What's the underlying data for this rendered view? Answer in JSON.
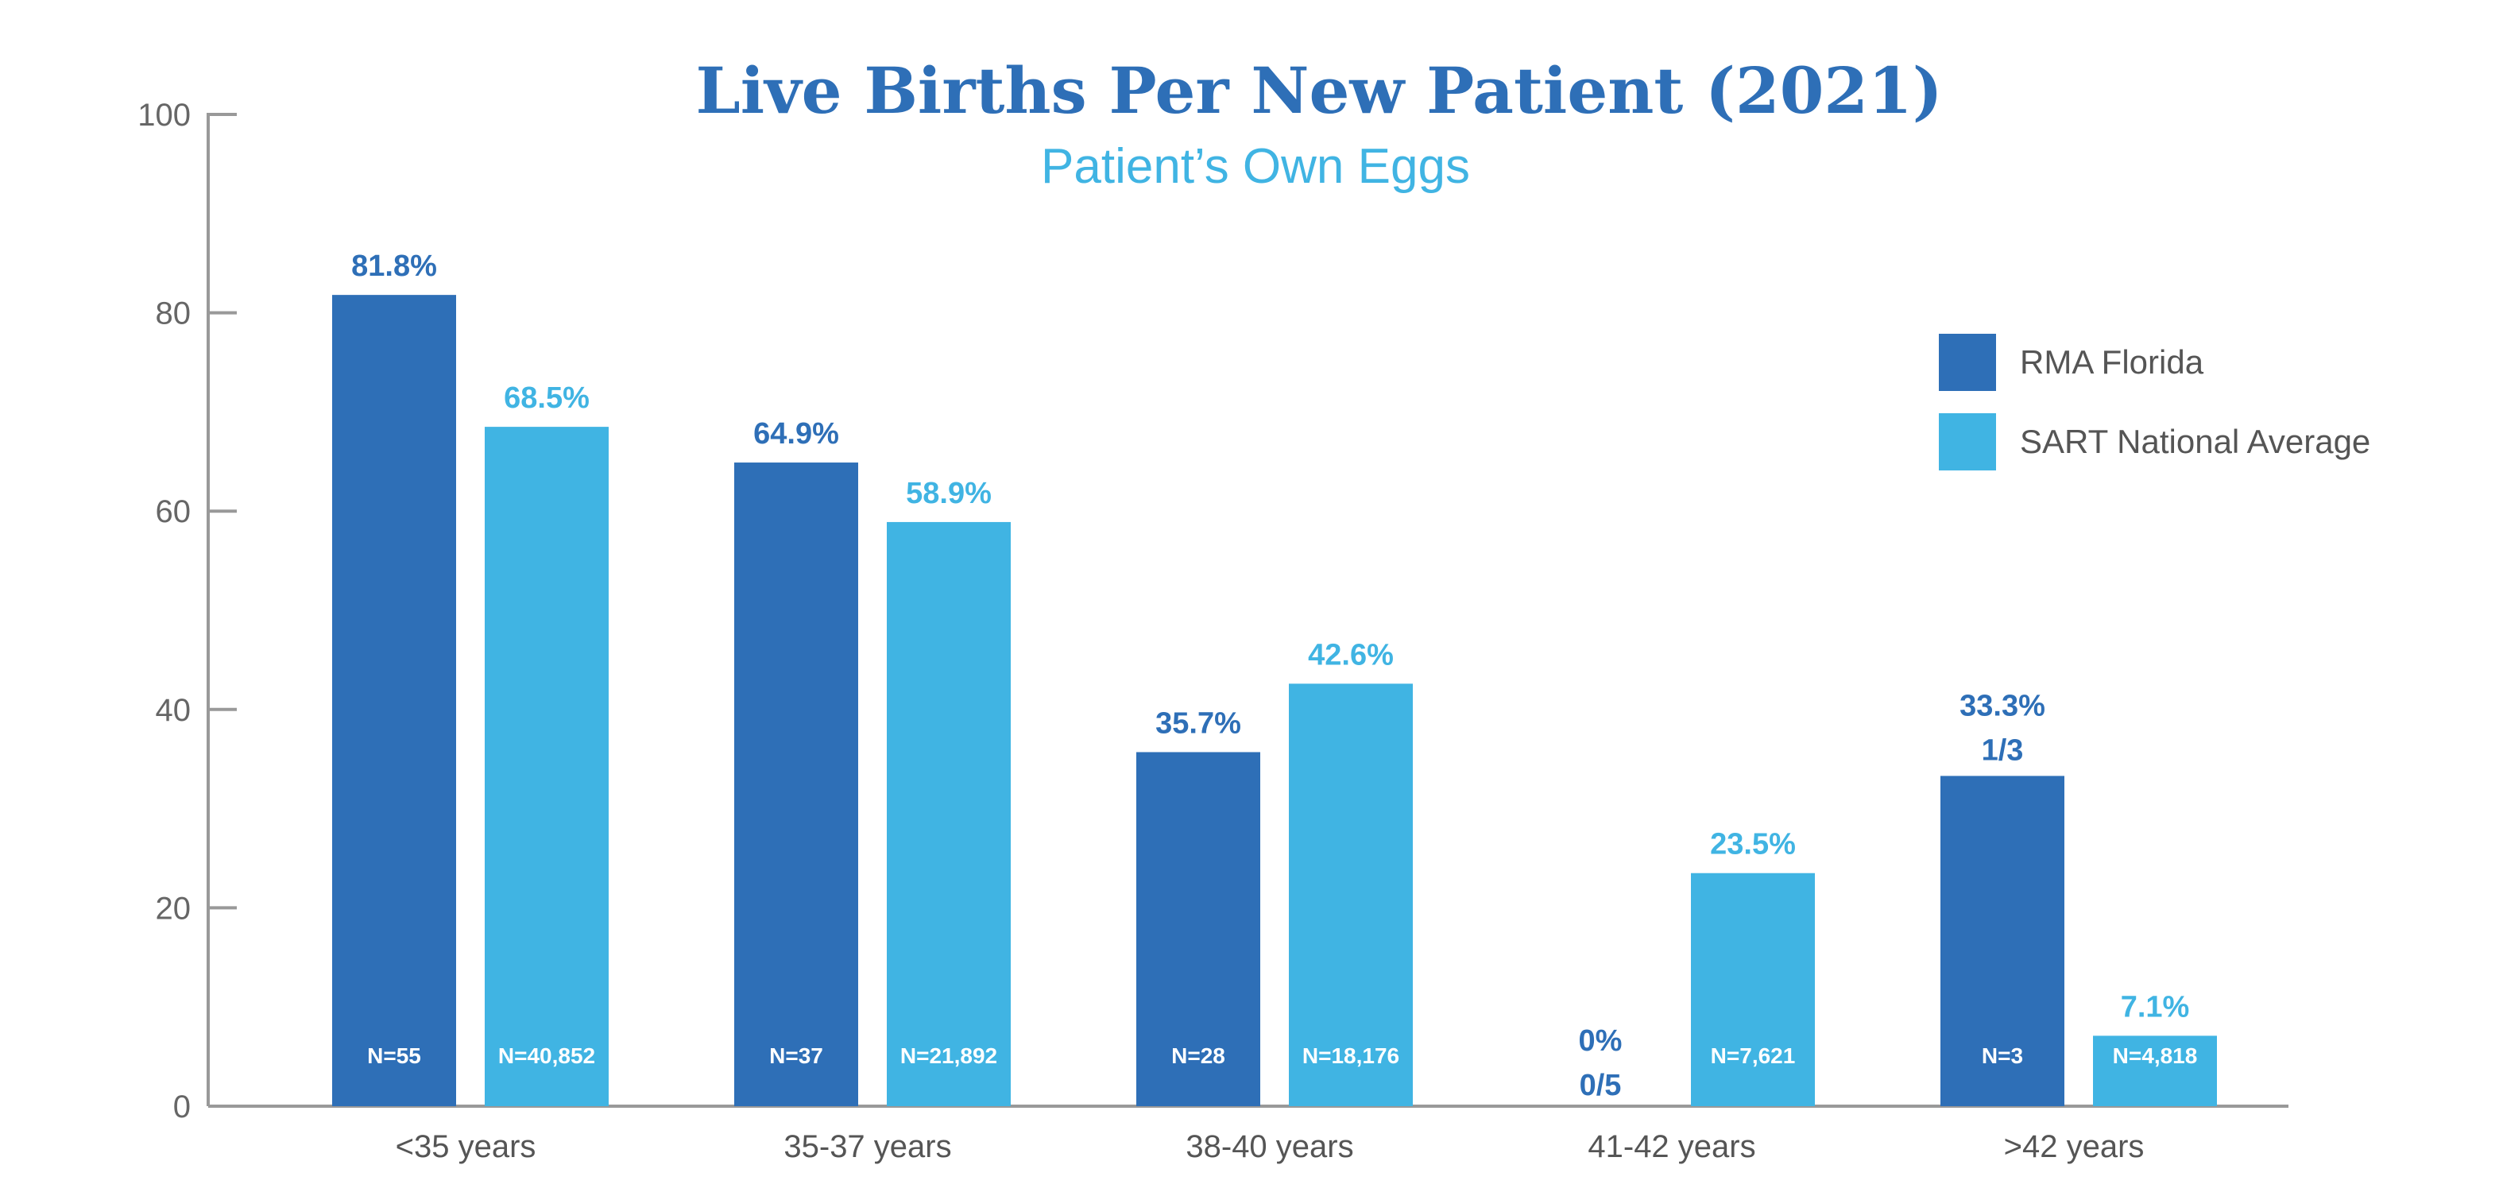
{
  "chart_data": {
    "type": "bar",
    "title": "Live Births Per New Patient (2021)",
    "subtitle": "Patient’s Own Eggs",
    "ylim": [
      0,
      100
    ],
    "yticks": [
      0,
      20,
      40,
      60,
      80,
      100
    ],
    "categories": [
      "<35 years",
      "35-37 years",
      "38-40 years",
      "41-42 years",
      ">42 years"
    ],
    "legend_position": "right",
    "grid": false,
    "series": [
      {
        "name": "RMA Florida",
        "color": "#2e6fb7",
        "values": [
          81.8,
          64.9,
          35.7,
          0,
          33.3
        ],
        "labels": [
          "81.8%",
          "64.9%",
          "35.7%",
          "0%",
          "33.3%"
        ],
        "sublabels": [
          "",
          "",
          "",
          "0/5",
          "1/3"
        ],
        "n_labels": [
          "N=55",
          "N=37",
          "N=28",
          "",
          "N=3"
        ]
      },
      {
        "name": "SART National Average",
        "color": "#40b4e3",
        "values": [
          68.5,
          58.9,
          42.6,
          23.5,
          7.1
        ],
        "labels": [
          "68.5%",
          "58.9%",
          "42.6%",
          "23.5%",
          "7.1%"
        ],
        "sublabels": [
          "",
          "",
          "",
          "",
          ""
        ],
        "n_labels": [
          "N=40,852",
          "N=21,892",
          "N=18,176",
          "N=7,621",
          "N=4,818"
        ]
      }
    ]
  }
}
